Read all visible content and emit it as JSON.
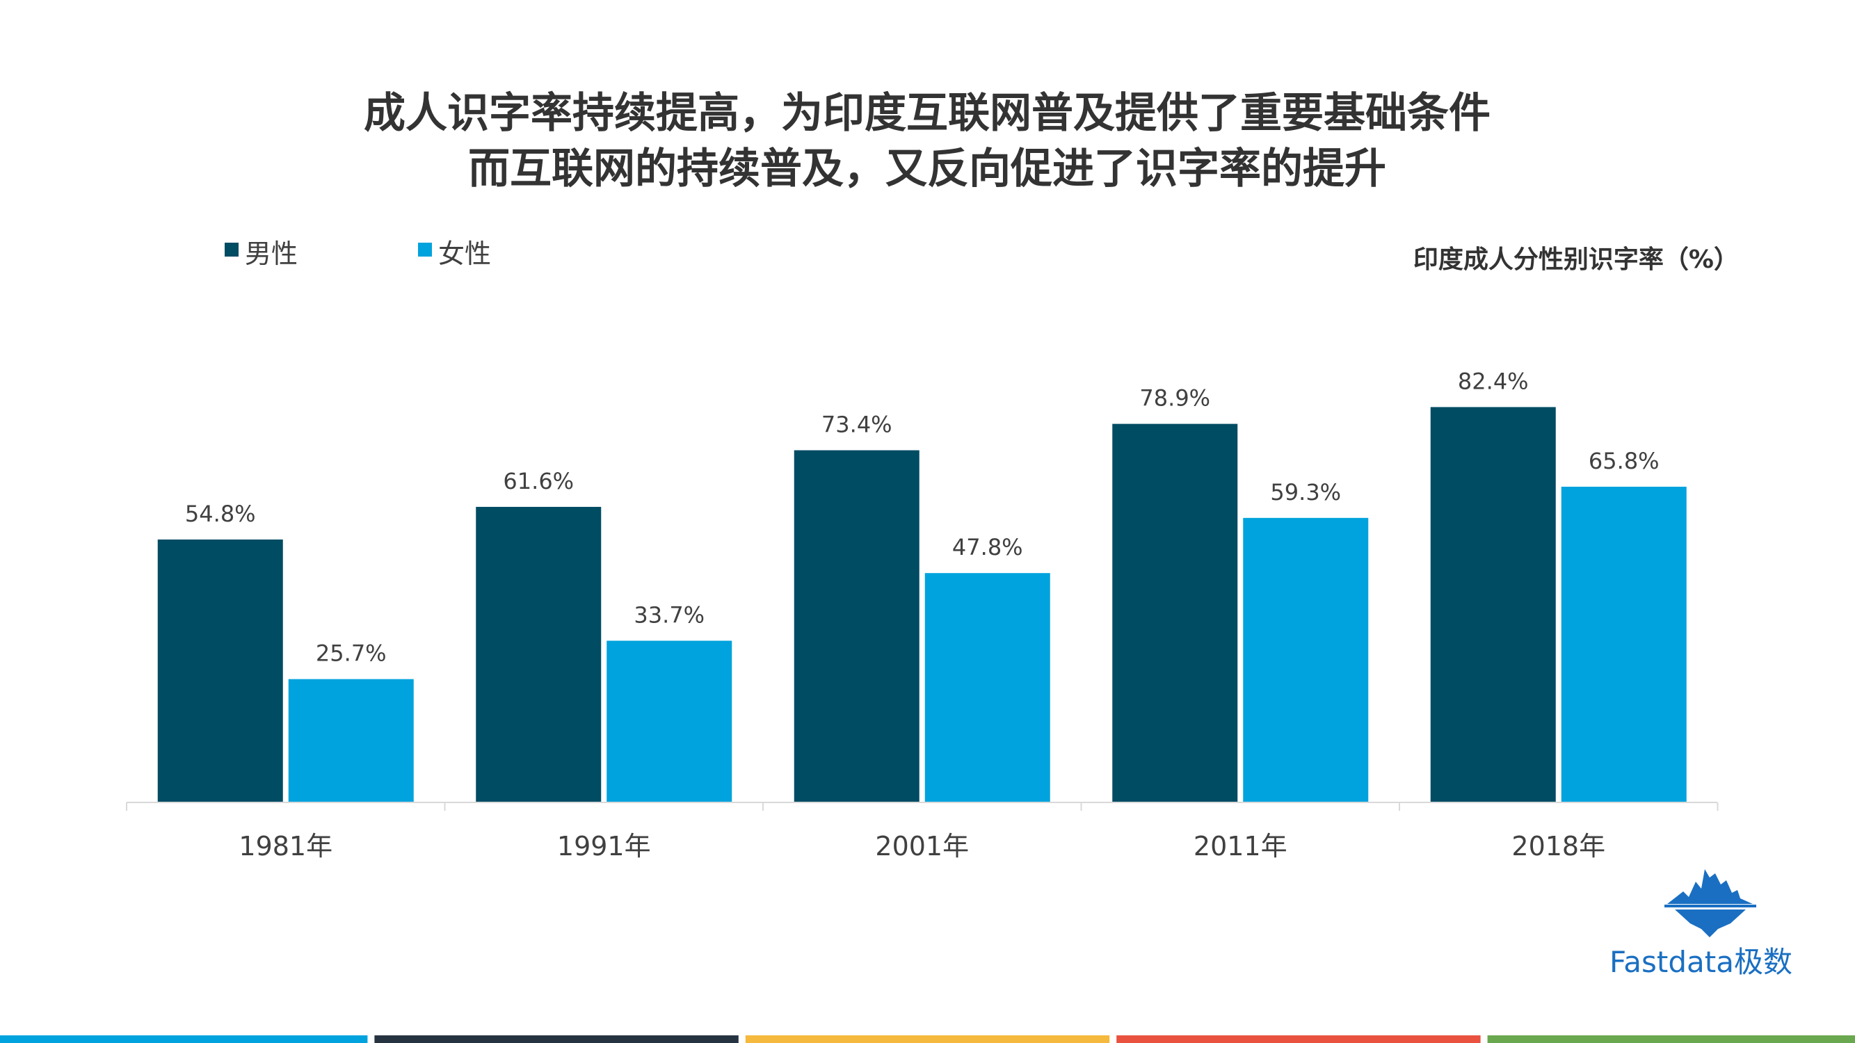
{
  "title_lines": [
    "成人识字率持续提高，为印度互联网普及提供了重要基础条件",
    "而互联网的持续普及，又反向促进了识字率的提升"
  ],
  "brand": {
    "name": "Fastdata极数",
    "icon": "iceberg-logo-icon",
    "color": "#1a6fc2"
  },
  "bottom_bar_colors": [
    "#00a3dd",
    "#263340",
    "#f5b93d",
    "#e8523f",
    "#6aa84f"
  ],
  "chart_data": {
    "type": "bar",
    "title": "印度成人分性别识字率（%）",
    "categories": [
      "1981年",
      "1991年",
      "2001年",
      "2011年",
      "2018年"
    ],
    "series": [
      {
        "name": "男性",
        "color": "#004c63",
        "values": [
          54.8,
          61.6,
          73.4,
          78.9,
          82.4
        ],
        "labels": [
          "54.8%",
          "61.6%",
          "73.4%",
          "78.9%",
          "82.4%"
        ]
      },
      {
        "name": "女性",
        "color": "#00a3dd",
        "values": [
          25.7,
          33.7,
          47.8,
          59.3,
          65.8
        ],
        "labels": [
          "25.7%",
          "33.7%",
          "47.8%",
          "59.3%",
          "65.8%"
        ]
      }
    ],
    "ylim": [
      0,
      100
    ],
    "grid": false,
    "legend_position": "top-left",
    "xlabel": "",
    "ylabel": ""
  }
}
